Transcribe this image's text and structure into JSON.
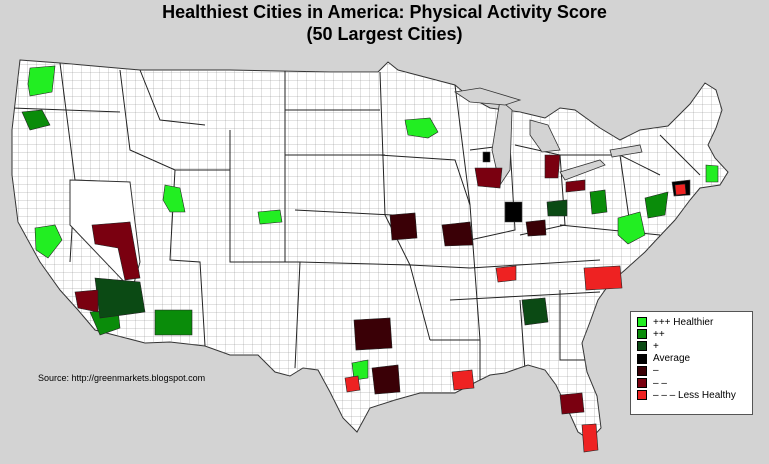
{
  "title": {
    "line1": "Healthiest Cities in America: Physical Activity Score",
    "line2": "(50 Largest Cities)"
  },
  "source": "Source: http://greenmarkets.blogspot.com",
  "legend": {
    "items": [
      {
        "label": "+++ Healthier",
        "color": "#22ee22"
      },
      {
        "label": "++",
        "color": "#0a8c0a"
      },
      {
        "label": "+",
        "color": "#0b4a14"
      },
      {
        "label": "Average",
        "color": "#000000"
      },
      {
        "label": "–",
        "color": "#3a0006"
      },
      {
        "label": "– –",
        "color": "#7a0010"
      },
      {
        "label": "– – – Less Healthy",
        "color": "#ee2222"
      }
    ]
  },
  "colors": {
    "background": "#d3d3d3",
    "land": "#ffffff",
    "borders": "#555555"
  }
}
